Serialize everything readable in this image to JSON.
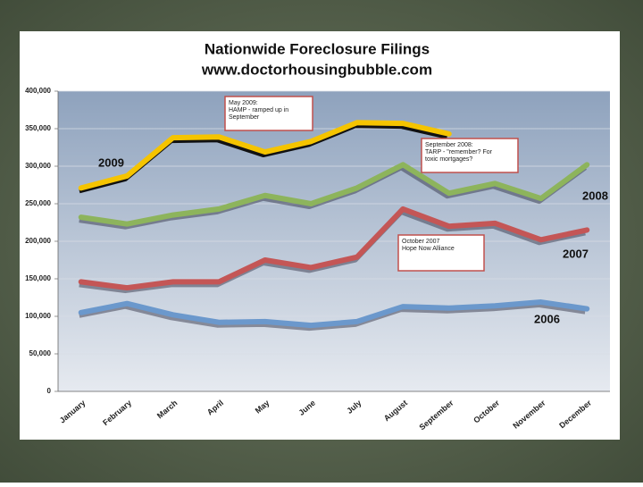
{
  "chart_data": {
    "type": "line",
    "title": [
      "Nationwide Foreclosure Filings",
      "www.doctorhousingbubble.com"
    ],
    "categories": [
      "January",
      "February",
      "March",
      "April",
      "May",
      "June",
      "July",
      "August",
      "September",
      "October",
      "November",
      "December"
    ],
    "series": [
      {
        "name": "2009",
        "color": "#f5c400",
        "values": [
          271000,
          287000,
          338000,
          339000,
          319000,
          333000,
          358000,
          357000,
          343000,
          null,
          null,
          null
        ]
      },
      {
        "name": "2008",
        "color": "#8db45c",
        "values": [
          232000,
          223000,
          235000,
          243000,
          261000,
          250000,
          271000,
          302000,
          264000,
          277000,
          257000,
          302000
        ]
      },
      {
        "name": "2007",
        "color": "#c45656",
        "values": [
          146000,
          138000,
          146000,
          146000,
          175000,
          165000,
          179000,
          243000,
          220000,
          224000,
          202000,
          215000
        ]
      },
      {
        "name": "2006",
        "color": "#6b98cc",
        "values": [
          105000,
          117000,
          102000,
          92000,
          93000,
          88000,
          93000,
          113000,
          111000,
          114000,
          119000,
          110000
        ]
      }
    ],
    "ylim": [
      0,
      400000
    ],
    "yticks": [
      0,
      {
        "value": 50000,
        "label": "50,000"
      },
      {
        "value": 100000,
        "label": "100,000"
      },
      {
        "value": 150000,
        "label": "150,000"
      },
      {
        "value": 200000,
        "label": "200,000"
      },
      {
        "value": 250000,
        "label": "250,000"
      },
      {
        "value": 300000,
        "label": "300,000"
      },
      {
        "value": 350000,
        "label": "350,000"
      },
      {
        "value": 400000,
        "label": "400,000"
      }
    ],
    "grid": true,
    "annotations": [
      {
        "lines": [
          "May 2009:",
          "HAMP - ramped up in",
          "September"
        ]
      },
      {
        "lines": [
          "September 2008:",
          "TARP - \"remember?  For",
          "toxic mortgages?"
        ]
      },
      {
        "lines": [
          "October 2007",
          "Hope Now Alliance"
        ]
      }
    ]
  }
}
